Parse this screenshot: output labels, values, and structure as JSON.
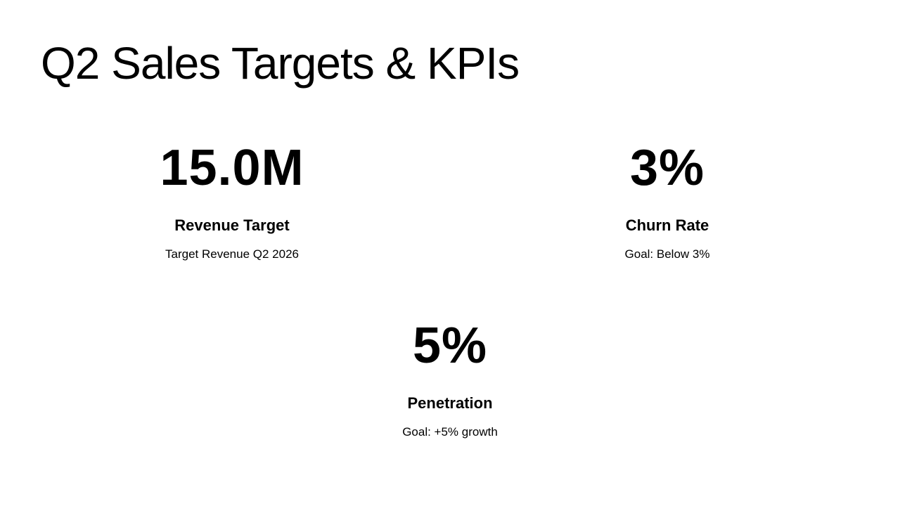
{
  "slide": {
    "title": "Q2 Sales Targets & KPIs",
    "kpis": [
      {
        "value": "15.0M",
        "label": "Revenue Target",
        "description": "Target Revenue Q2 2026"
      },
      {
        "value": "3%",
        "label": "Churn Rate",
        "description": "Goal: Below 3%"
      },
      {
        "value": "5%",
        "label": "Penetration",
        "description": "Goal: +5% growth"
      }
    ]
  }
}
